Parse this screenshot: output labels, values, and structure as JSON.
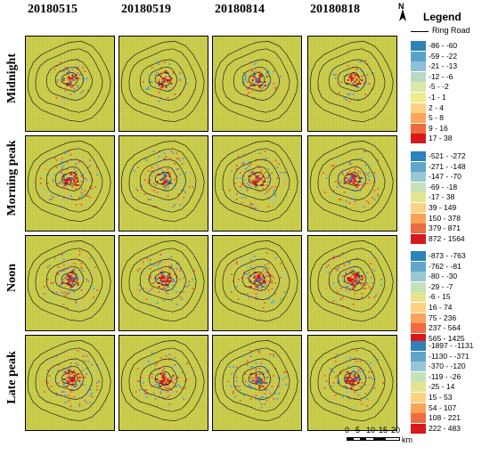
{
  "columns": [
    "20180515",
    "20180519",
    "20180814",
    "20180818"
  ],
  "rows": [
    "Midnight",
    "Morning peak",
    "Noon",
    "Late peak"
  ],
  "legend": {
    "title": "Legend",
    "north_label": "N",
    "ring_road_label": "Ring Road",
    "classes": [
      [
        "-86 - -60",
        "-59 - -22",
        "-21 - -13",
        "-12 - -6",
        "-5 - -2",
        "-1 - 1",
        "2 - 4",
        "5 - 8",
        "9 - 16",
        "17 - 38"
      ],
      [
        "-521 - -272",
        "-271 - -148",
        "-147 - -70",
        "-69 - -18",
        "-17 - 38",
        "39 - 149",
        "150 - 378",
        "379 - 871",
        "872 - 1564"
      ],
      [
        "-873 - -763",
        "-762 - -81",
        "-80 - -30",
        "-29 - -7",
        "-6 - 15",
        "16 - 74",
        "75 - 236",
        "237 - 564",
        "565 - 1425"
      ],
      [
        "-1897 - -1131",
        "-1130 - -371",
        "-370 - -120",
        "-119 - -26",
        "-25 - 14",
        "15 - 53",
        "54 - 107",
        "108 - 221",
        "222 - 483"
      ]
    ],
    "colors": [
      [
        "#2b83ba",
        "#5aa3c8",
        "#8cc0d4",
        "#b8d9c4",
        "#d7e8a9",
        "#ecec8d",
        "#fdd080",
        "#f9a65a",
        "#ef6b3f",
        "#d7191c"
      ],
      [
        "#2b83ba",
        "#5fa6c9",
        "#97c7d4",
        "#c5e1b8",
        "#e6e58f",
        "#fdd27f",
        "#f8a25a",
        "#ee6a40",
        "#d7191c"
      ],
      [
        "#2b83ba",
        "#5fa6c9",
        "#97c7d4",
        "#c5e1b8",
        "#e6e58f",
        "#fdd27f",
        "#f8a25a",
        "#ee6a40",
        "#d7191c"
      ],
      [
        "#2b83ba",
        "#5fa6c9",
        "#97c7d4",
        "#c5e1b8",
        "#e6e58f",
        "#fdd27f",
        "#f8a25a",
        "#ee6a40",
        "#d7191c"
      ]
    ]
  },
  "scale_bar": {
    "ticks": [
      "0",
      "5",
      "10",
      "15",
      "20"
    ],
    "unit": "km"
  },
  "map_colors": {
    "background": "#cccf4e",
    "grid": "#b7ba40",
    "ring": "#222222"
  }
}
